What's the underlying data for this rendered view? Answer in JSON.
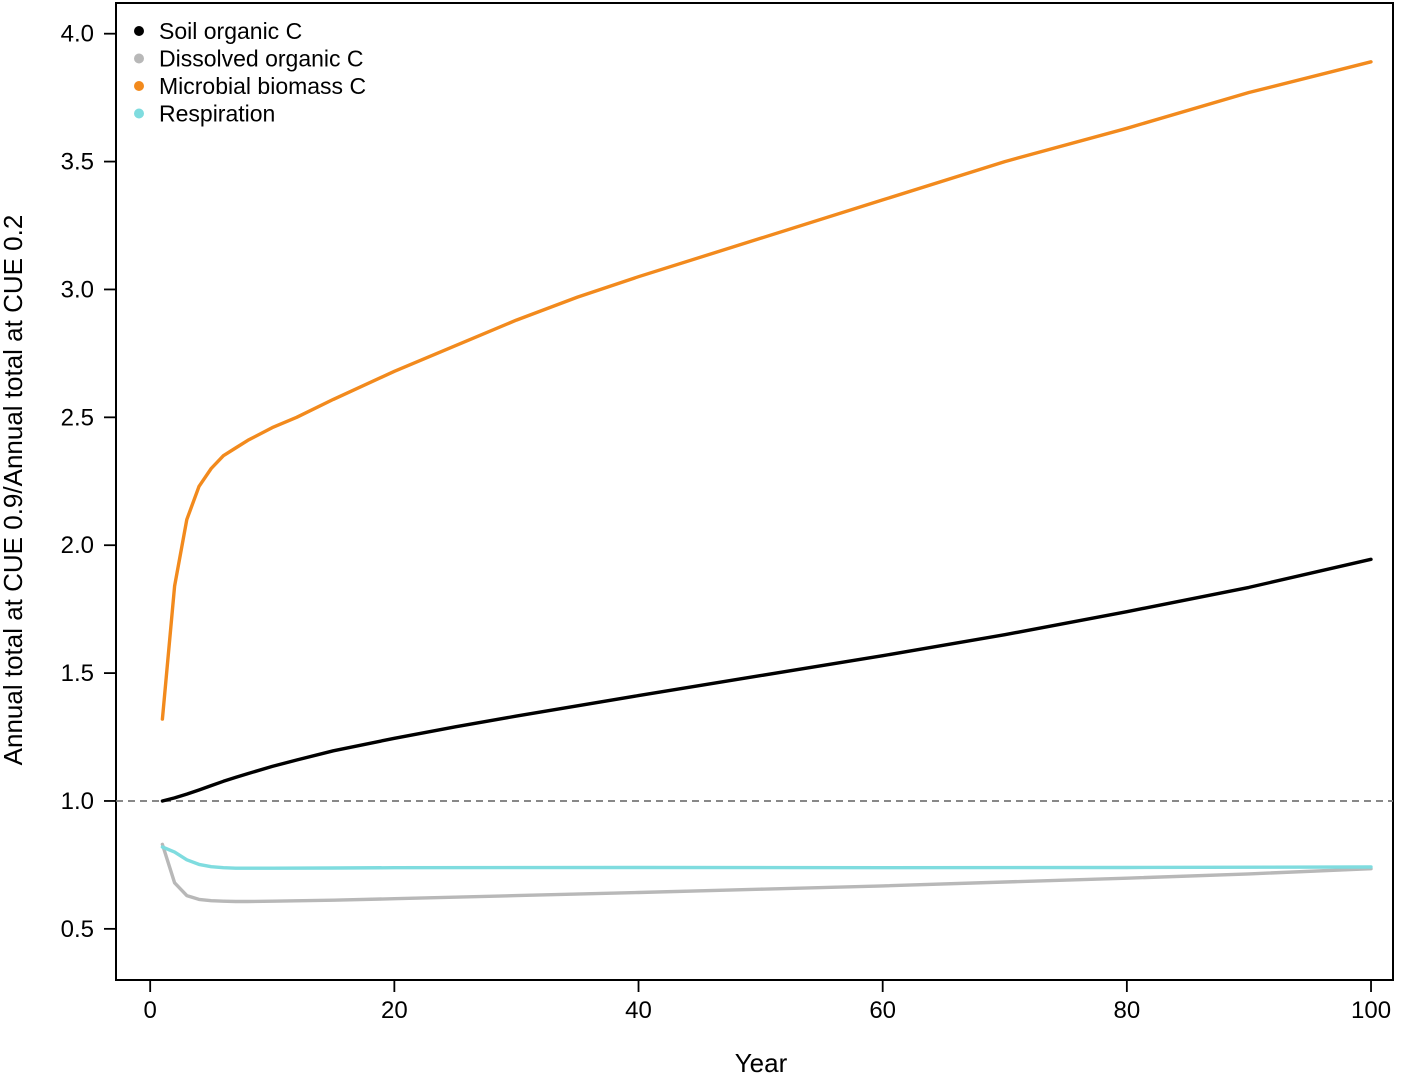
{
  "chart_data": {
    "type": "line",
    "xlabel": "Year",
    "ylabel": "Annual total at CUE 0.9/Annual total at CUE 0.2",
    "xlim": [
      -2.8,
      101.8
    ],
    "ylim": [
      0.3,
      4.12
    ],
    "xticks": [
      0,
      20,
      40,
      60,
      80,
      100
    ],
    "yticks": [
      0.5,
      1.0,
      1.5,
      2.0,
      2.5,
      3.0,
      3.5,
      4.0
    ],
    "xtick_labels": [
      "0",
      "20",
      "40",
      "60",
      "80",
      "100"
    ],
    "ytick_labels": [
      "0.5",
      "1.0",
      "1.5",
      "2.0",
      "2.5",
      "3.0",
      "3.5",
      "4.0"
    ],
    "reference_line": {
      "y": 1.0,
      "style": "dashed",
      "color": "#777777"
    },
    "legend": {
      "position": "top-left",
      "markers": "dot"
    },
    "grid": false,
    "series": [
      {
        "name": "Soil organic C",
        "color": "#000000",
        "x": [
          1,
          2,
          3,
          4,
          5,
          6,
          7,
          8,
          10,
          12,
          15,
          20,
          25,
          30,
          40,
          50,
          60,
          70,
          80,
          90,
          100
        ],
        "y": [
          1.0,
          1.012,
          1.027,
          1.043,
          1.06,
          1.077,
          1.092,
          1.107,
          1.135,
          1.16,
          1.196,
          1.245,
          1.29,
          1.332,
          1.412,
          1.49,
          1.568,
          1.65,
          1.74,
          1.835,
          1.945
        ]
      },
      {
        "name": "Dissolved organic C",
        "color": "#b8b8b8",
        "x": [
          1,
          2,
          3,
          4,
          5,
          6,
          7,
          8,
          10,
          15,
          20,
          30,
          40,
          50,
          60,
          70,
          80,
          90,
          100
        ],
        "y": [
          0.83,
          0.68,
          0.63,
          0.615,
          0.61,
          0.608,
          0.607,
          0.607,
          0.608,
          0.612,
          0.618,
          0.63,
          0.642,
          0.655,
          0.668,
          0.683,
          0.698,
          0.715,
          0.735
        ]
      },
      {
        "name": "Microbial biomass C",
        "color": "#f28a1d",
        "x": [
          1,
          2,
          3,
          4,
          5,
          6,
          7,
          8,
          10,
          12,
          15,
          20,
          25,
          30,
          35,
          40,
          50,
          60,
          70,
          80,
          90,
          100
        ],
        "y": [
          1.32,
          1.84,
          2.1,
          2.23,
          2.3,
          2.35,
          2.38,
          2.41,
          2.46,
          2.5,
          2.57,
          2.68,
          2.78,
          2.88,
          2.97,
          3.05,
          3.2,
          3.35,
          3.5,
          3.63,
          3.77,
          3.89
        ]
      },
      {
        "name": "Respiration",
        "color": "#7fdcdf",
        "x": [
          1,
          2,
          3,
          4,
          5,
          6,
          7,
          8,
          10,
          15,
          20,
          40,
          60,
          80,
          100
        ],
        "y": [
          0.82,
          0.8,
          0.77,
          0.752,
          0.743,
          0.739,
          0.737,
          0.737,
          0.737,
          0.738,
          0.739,
          0.74,
          0.739,
          0.74,
          0.742
        ]
      }
    ]
  }
}
